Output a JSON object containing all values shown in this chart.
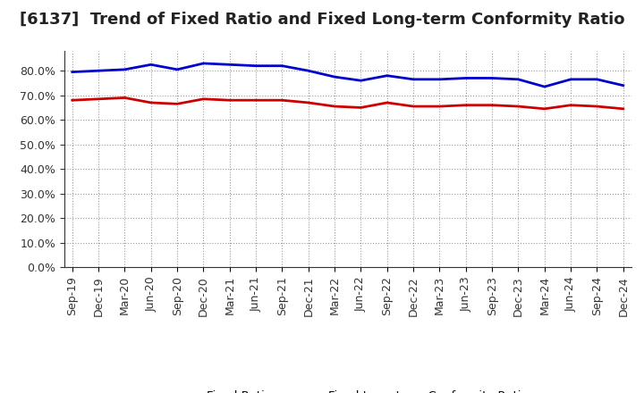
{
  "title": "[6137]  Trend of Fixed Ratio and Fixed Long-term Conformity Ratio",
  "x_labels": [
    "Sep-19",
    "Dec-19",
    "Mar-20",
    "Jun-20",
    "Sep-20",
    "Dec-20",
    "Mar-21",
    "Jun-21",
    "Sep-21",
    "Dec-21",
    "Mar-22",
    "Jun-22",
    "Sep-22",
    "Dec-22",
    "Mar-23",
    "Jun-23",
    "Sep-23",
    "Dec-23",
    "Mar-24",
    "Jun-24",
    "Sep-24",
    "Dec-24"
  ],
  "fixed_ratio": [
    79.5,
    80.0,
    80.5,
    82.5,
    80.5,
    83.0,
    82.5,
    82.0,
    82.0,
    80.0,
    77.5,
    76.0,
    78.0,
    76.5,
    76.5,
    77.0,
    77.0,
    76.5,
    73.5,
    76.5,
    76.5,
    74.0
  ],
  "fixed_lt_ratio": [
    68.0,
    68.5,
    69.0,
    67.0,
    66.5,
    68.5,
    68.0,
    68.0,
    68.0,
    67.0,
    65.5,
    65.0,
    67.0,
    65.5,
    65.5,
    66.0,
    66.0,
    65.5,
    64.5,
    66.0,
    65.5,
    64.5
  ],
  "fixed_ratio_color": "#0000CC",
  "fixed_lt_ratio_color": "#CC0000",
  "ylim": [
    0,
    88
  ],
  "yticks": [
    0,
    10,
    20,
    30,
    40,
    50,
    60,
    70,
    80
  ],
  "background_color": "#FFFFFF",
  "grid_color": "#999999",
  "title_fontsize": 13,
  "axis_fontsize": 9,
  "legend_labels": [
    "Fixed Ratio",
    "Fixed Long-term Conformity Ratio"
  ]
}
